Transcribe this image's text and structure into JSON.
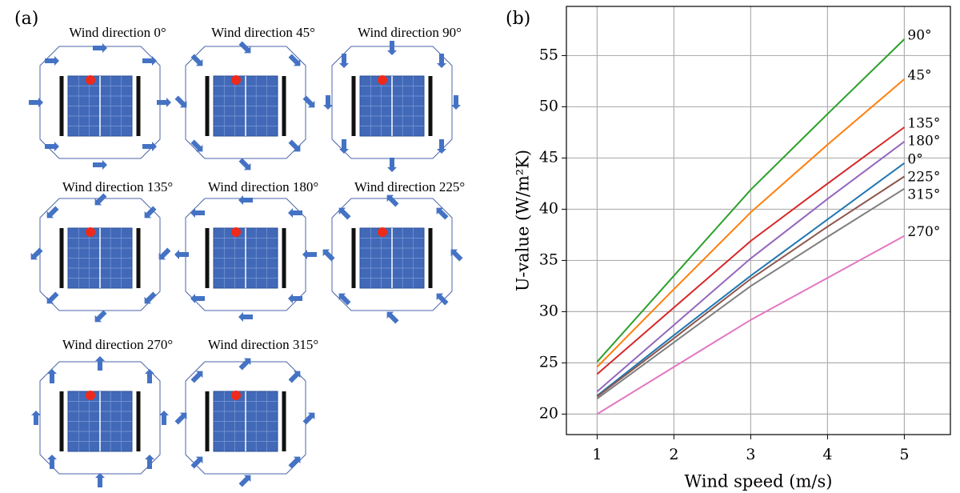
{
  "panels": {
    "left": "(a)",
    "right": "(b)"
  },
  "diagrams": [
    {
      "title": "Wind direction 0°"
    },
    {
      "title": "Wind direction 45°"
    },
    {
      "title": "Wind direction 90°"
    },
    {
      "title": "Wind direction 135°"
    },
    {
      "title": "Wind direction 180°"
    },
    {
      "title": "Wind direction 225°"
    },
    {
      "title": "Wind direction 270°"
    },
    {
      "title": "Wind direction 315°"
    }
  ],
  "chart_data": {
    "type": "line",
    "x_label": "Wind speed (m/s)",
    "y_label": "U-value (W/m²K)",
    "x": [
      1,
      2,
      3,
      4,
      5
    ],
    "series": [
      {
        "name": "90°",
        "color": "#2ca02c",
        "values": [
          25.1,
          33.5,
          41.9,
          49.3,
          56.6
        ]
      },
      {
        "name": "45°",
        "color": "#ff7f0e",
        "values": [
          24.6,
          32.2,
          39.7,
          46.3,
          52.7
        ]
      },
      {
        "name": "135°",
        "color": "#d62728",
        "values": [
          23.9,
          30.4,
          36.9,
          42.5,
          48.0
        ]
      },
      {
        "name": "180°",
        "color": "#9467bd",
        "values": [
          22.2,
          28.7,
          35.2,
          41.0,
          46.6
        ]
      },
      {
        "name": "0°",
        "color": "#1f77b4",
        "values": [
          21.8,
          27.7,
          33.5,
          39.0,
          44.5
        ]
      },
      {
        "name": "225°",
        "color": "#8c564b",
        "values": [
          21.7,
          27.4,
          33.2,
          38.3,
          43.2
        ]
      },
      {
        "name": "315°",
        "color": "#7f7f7f",
        "values": [
          21.5,
          27.0,
          32.5,
          37.3,
          42.0
        ]
      },
      {
        "name": "270°",
        "color": "#e377c2",
        "values": [
          20.0,
          24.6,
          29.2,
          33.3,
          37.4
        ]
      }
    ],
    "xlim": [
      0.6,
      5.6
    ],
    "ylim": [
      18,
      59.8
    ],
    "xticks": [
      1,
      2,
      3,
      4,
      5
    ],
    "yticks": [
      20,
      25,
      30,
      35,
      40,
      45,
      50,
      55
    ],
    "grid": true
  }
}
